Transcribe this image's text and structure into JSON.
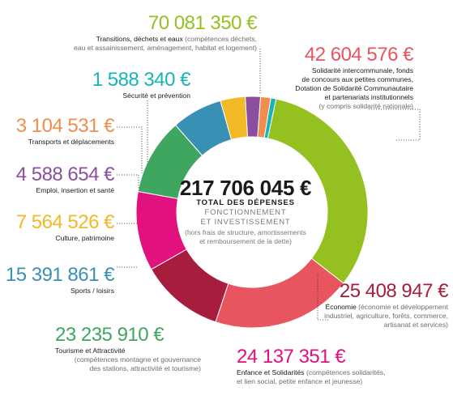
{
  "chart_data": {
    "type": "donut",
    "total": {
      "amount": "217 706 045 €",
      "title": "TOTAL DES DÉPENSES",
      "subtitle_line1": "FONCTIONNEMENT",
      "subtitle_line2": "ET INVESTISSEMENT",
      "note_line1": "(hors frais de structure, amortissements",
      "note_line2": "et remboursement de la dette)"
    },
    "segments": [
      {
        "key": "transitions",
        "value": 70081350,
        "amount_label": "70 081 350 €",
        "color": "#94c11f",
        "title": "Transitions, déchets et eaux",
        "desc_inline": " (compétences déchets,",
        "desc_lines": [
          "eau et assainissement, aménagement, habitat et logement)"
        ]
      },
      {
        "key": "solidarite-intercommunale",
        "value": 42604576,
        "amount_label": "42 604 576 €",
        "color": "#e8555f",
        "title_lines": [
          "Solidarité intercommunale, fonds",
          "de concours aux petites communes,",
          "Dotation de Solidarité Communautaire",
          "et partenariats institutionnels"
        ],
        "desc_lines": [
          "(y compris solidarité nationale)"
        ]
      },
      {
        "key": "economie",
        "value": 25408947,
        "amount_label": "25 408 947 €",
        "color": "#a71d3d",
        "title": "Économie",
        "desc_inline": " (économie et développement",
        "desc_lines": [
          "industriel, agriculture, forêts, commerce,",
          "artisanat et services)"
        ]
      },
      {
        "key": "enfance",
        "value": 24137351,
        "amount_label": "24 137 351 €",
        "color": "#e1117e",
        "title": "Enfance et Solidarités",
        "desc_inline": " (compétences solidarités,",
        "desc_lines": [
          "et lien social, petite enfance et jeunesse)"
        ]
      },
      {
        "key": "tourisme",
        "value": 23235910,
        "amount_label": "23 235 910 €",
        "color": "#3fa660",
        "title": "Tourisme et Attractivité",
        "desc_lines": [
          "(compétences montagne et gouvernance",
          "des stations, attractivité et tourisme)"
        ]
      },
      {
        "key": "sports",
        "value": 15391861,
        "amount_label": "15 391 861 €",
        "color": "#3990b5",
        "title": "Sports / loisirs"
      },
      {
        "key": "culture",
        "value": 7564526,
        "amount_label": "7 564 526 €",
        "color": "#f2b927",
        "title": "Culture, patrimoine"
      },
      {
        "key": "emploi",
        "value": 4588654,
        "amount_label": "4 588 654 €",
        "color": "#8c4fa0",
        "title": "Emploi, insertion et santé"
      },
      {
        "key": "transports",
        "value": 3104531,
        "amount_label": "3 104 531 €",
        "color": "#f08e4d",
        "title": "Transports et déplacements"
      },
      {
        "key": "securite",
        "value": 1588340,
        "amount_label": "1 588 340 €",
        "color": "#17b3b6",
        "title": "Sécurité et prévention"
      }
    ]
  }
}
